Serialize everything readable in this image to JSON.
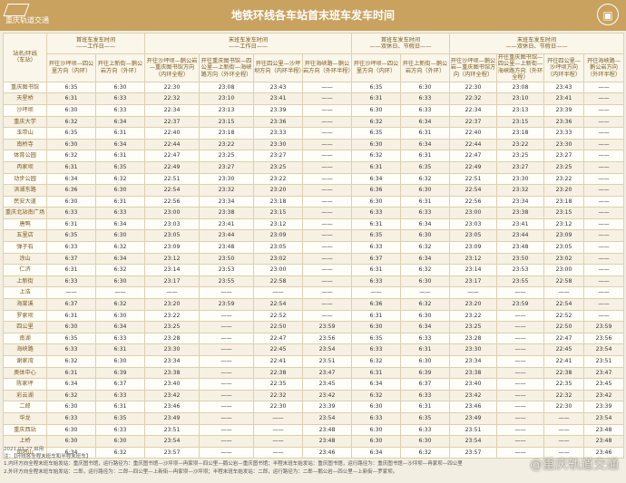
{
  "header": {
    "brand": "重庆轨道交通",
    "title": "地铁环线各车站首末班车发车时间"
  },
  "table": {
    "station_header": "站名/环线\n（车站）",
    "groups": [
      {
        "title": "首班车发车时间",
        "sub": "——工作日——"
      },
      {
        "title": "末班车发车时间",
        "sub": "——工作日——"
      },
      {
        "title": "首班车发车时间",
        "sub": "——双休日、节假日——"
      },
      {
        "title": "末班车发车时间",
        "sub": "——双休日、节假日——"
      }
    ],
    "directions": [
      "开往沙坪坝—四公里方向（内环）",
      "开往上新街—鹅公岩方向（外环）",
      "开往沙坪坝—鹅公岩—重庆图书馆方向（内环全程）",
      "开往重庆图书馆—四公里—上新街—海峡路方向（外环全程）",
      "开往四公里—沙坪坝方向（内环半程）",
      "开往海峡路—鹅公岩方向（外环半程）"
    ],
    "rows": [
      [
        "重庆图书馆",
        "6:35",
        "6:30",
        "22:30",
        "23:08",
        "23:43",
        "——",
        "6:35",
        "6:30",
        "22:30",
        "23:08",
        "23:43",
        "——"
      ],
      [
        "天星桥",
        "6:31",
        "6:33",
        "22:32",
        "23:10",
        "23:41",
        "——",
        "6:31",
        "6:33",
        "22:32",
        "23:10",
        "23:41",
        "——"
      ],
      [
        "沙坪坝",
        "6:30",
        "6:33",
        "22:34",
        "23:13",
        "23:39",
        "——",
        "6:30",
        "6:33",
        "22:34",
        "23:13",
        "23:39",
        "——"
      ],
      [
        "重庆大学",
        "6:32",
        "6:34",
        "22:37",
        "23:15",
        "23:36",
        "——",
        "6:32",
        "6:34",
        "22:37",
        "23:15",
        "23:36",
        "——"
      ],
      [
        "玉带山",
        "6:35",
        "6:31",
        "22:40",
        "23:18",
        "23:33",
        "——",
        "6:35",
        "6:31",
        "22:40",
        "23:18",
        "23:33",
        "——"
      ],
      [
        "南桥寺",
        "6:30",
        "6:34",
        "22:44",
        "23:22",
        "23:30",
        "——",
        "6:30",
        "6:34",
        "22:44",
        "23:22",
        "23:30",
        "——"
      ],
      [
        "体育公园",
        "6:32",
        "6:31",
        "22:47",
        "23:25",
        "23:27",
        "——",
        "6:32",
        "6:31",
        "22:47",
        "23:25",
        "23:27",
        "——"
      ],
      [
        "冉家坝",
        "6:31",
        "6:35",
        "22:49",
        "23:27",
        "23:25",
        "——",
        "6:31",
        "6:35",
        "22:49",
        "23:27",
        "23:25",
        "——"
      ],
      [
        "动步公园",
        "6:34",
        "6:32",
        "22:51",
        "23:30",
        "23:22",
        "——",
        "6:34",
        "6:32",
        "22:51",
        "23:30",
        "23:22",
        "——"
      ],
      [
        "洪湖东路",
        "6:36",
        "6:30",
        "22:54",
        "23:32",
        "23:20",
        "——",
        "6:36",
        "6:30",
        "22:54",
        "23:32",
        "23:20",
        "——"
      ],
      [
        "民安大道",
        "6:30",
        "6:31",
        "22:56",
        "23:34",
        "23:18",
        "——",
        "6:30",
        "6:31",
        "22:56",
        "23:34",
        "23:18",
        "——"
      ],
      [
        "重庆北站南广场",
        "6:33",
        "6:33",
        "23:00",
        "23:38",
        "23:15",
        "——",
        "6:33",
        "6:33",
        "23:00",
        "23:38",
        "23:15",
        "——"
      ],
      [
        "唐鸭",
        "6:31",
        "6:34",
        "23:03",
        "23:41",
        "23:12",
        "——",
        "6:31",
        "6:34",
        "23:03",
        "23:41",
        "23:12",
        "——"
      ],
      [
        "五里店",
        "6:35",
        "6:30",
        "23:05",
        "23:44",
        "23:09",
        "——",
        "6:35",
        "6:30",
        "23:05",
        "23:44",
        "23:09",
        "——"
      ],
      [
        "弹子石",
        "6:33",
        "6:32",
        "23:09",
        "23:48",
        "23:05",
        "——",
        "6:33",
        "6:32",
        "23:09",
        "23:48",
        "23:05",
        "——"
      ],
      [
        "涂山",
        "6:37",
        "6:34",
        "23:12",
        "23:50",
        "23:02",
        "——",
        "6:37",
        "6:34",
        "23:12",
        "23:50",
        "23:02",
        "——"
      ],
      [
        "仁济",
        "6:31",
        "6:32",
        "23:14",
        "23:53",
        "23:00",
        "——",
        "6:31",
        "6:32",
        "23:14",
        "23:53",
        "23:00",
        "——"
      ],
      [
        "上新街",
        "6:33",
        "6:30",
        "23:17",
        "23:55",
        "22:58",
        "——",
        "6:33",
        "6:30",
        "23:17",
        "23:55",
        "22:58",
        "——"
      ],
      [
        "上浩",
        "——",
        "——",
        "——",
        "——",
        "——",
        "——",
        "——",
        "——",
        "——",
        "——",
        "——",
        "——"
      ],
      [
        "海棠溪",
        "6:37",
        "6:32",
        "23:20",
        "23:59",
        "22:54",
        "——",
        "6:36",
        "6:32",
        "23:20",
        "23:59",
        "22:54",
        "——"
      ],
      [
        "罗家坝",
        "6:31",
        "6:30",
        "23:22",
        "——",
        "22:52",
        "——",
        "6:31",
        "6:30",
        "23:22",
        "——",
        "22:52",
        "——"
      ],
      [
        "四公里",
        "6:30",
        "6:34",
        "23:25",
        "——",
        "22:50",
        "23:59",
        "6:30",
        "6:34",
        "23:25",
        "——",
        "22:50",
        "23:59"
      ],
      [
        "南湖",
        "6:35",
        "6:33",
        "23:28",
        "——",
        "22:47",
        "23:56",
        "6:35",
        "6:33",
        "23:28",
        "——",
        "22:47",
        "23:56"
      ],
      [
        "海峡路",
        "6:33",
        "6:31",
        "23:30",
        "——",
        "22:45",
        "23:54",
        "6:33",
        "6:31",
        "23:30",
        "——",
        "22:45",
        "23:54"
      ],
      [
        "谢家湾",
        "6:32",
        "6:30",
        "23:34",
        "——",
        "22:41",
        "23:51",
        "6:32",
        "6:30",
        "23:34",
        "——",
        "22:41",
        "23:51"
      ],
      [
        "奥体中心",
        "6:31",
        "6:39",
        "23:38",
        "——",
        "22:38",
        "23:47",
        "6:31",
        "6:39",
        "23:38",
        "——",
        "22:38",
        "23:47"
      ],
      [
        "陈家坪",
        "6:34",
        "6:37",
        "23:40",
        "——",
        "22:35",
        "23:45",
        "6:34",
        "6:37",
        "23:40",
        "——",
        "22:35",
        "23:45"
      ],
      [
        "彩云湖",
        "6:32",
        "6:33",
        "23:42",
        "——",
        "22:32",
        "23:42",
        "6:32",
        "6:33",
        "23:42",
        "——",
        "22:32",
        "23:42"
      ],
      [
        "二郎",
        "6:30",
        "6:31",
        "23:46",
        "——",
        "22:30",
        "23:39",
        "6:30",
        "6:31",
        "23:46",
        "——",
        "22:30",
        "23:39"
      ],
      [
        "华龙",
        "6:33",
        "6:35",
        "23:49",
        "——",
        "——",
        "23:54",
        "6:33",
        "6:35",
        "23:49",
        "——",
        "——",
        "23:54"
      ],
      [
        "重庆西站",
        "6:30",
        "6:33",
        "23:51",
        "——",
        "——",
        "23:48",
        "6:30",
        "6:33",
        "23:51",
        "——",
        "——",
        "23:48"
      ],
      [
        "上桥",
        "6:30",
        "6:30",
        "23:54",
        "——",
        "——",
        "23:48",
        "6:30",
        "6:30",
        "23:54",
        "——",
        "——",
        "23:48"
      ],
      [
        "凤鸣山",
        "6:34",
        "6:32",
        "23:57",
        "——",
        "——",
        "23:46",
        "6:34",
        "6:32",
        "23:57",
        "——",
        "——",
        "23:46"
      ]
    ]
  },
  "footer": {
    "date": "2021.03.27 启用",
    "notes": [
      "注：【环线各全程末班车和半程末班车】",
      "1.内环方向全程末班车始发站：重庆图书馆，运行路径为：重庆图书馆—沙坪坝—冉家坝—四公里—鹅公岩—重庆图书馆；半程末班车始发站：重庆图书馆，运行路径为：重庆图书馆—沙坪坝—冉家坝—四公里",
      "2.外环方向全程末班车始发站：二郎，运行路径为：二郎—四公里—上新街—冉家坝—沙坪坝；半程末班车始发站：二郎，运行路径为：二郎—鹅公岩—四公里—上新街—罗家坝。"
    ],
    "watermark": "@重庆轨道交通"
  }
}
